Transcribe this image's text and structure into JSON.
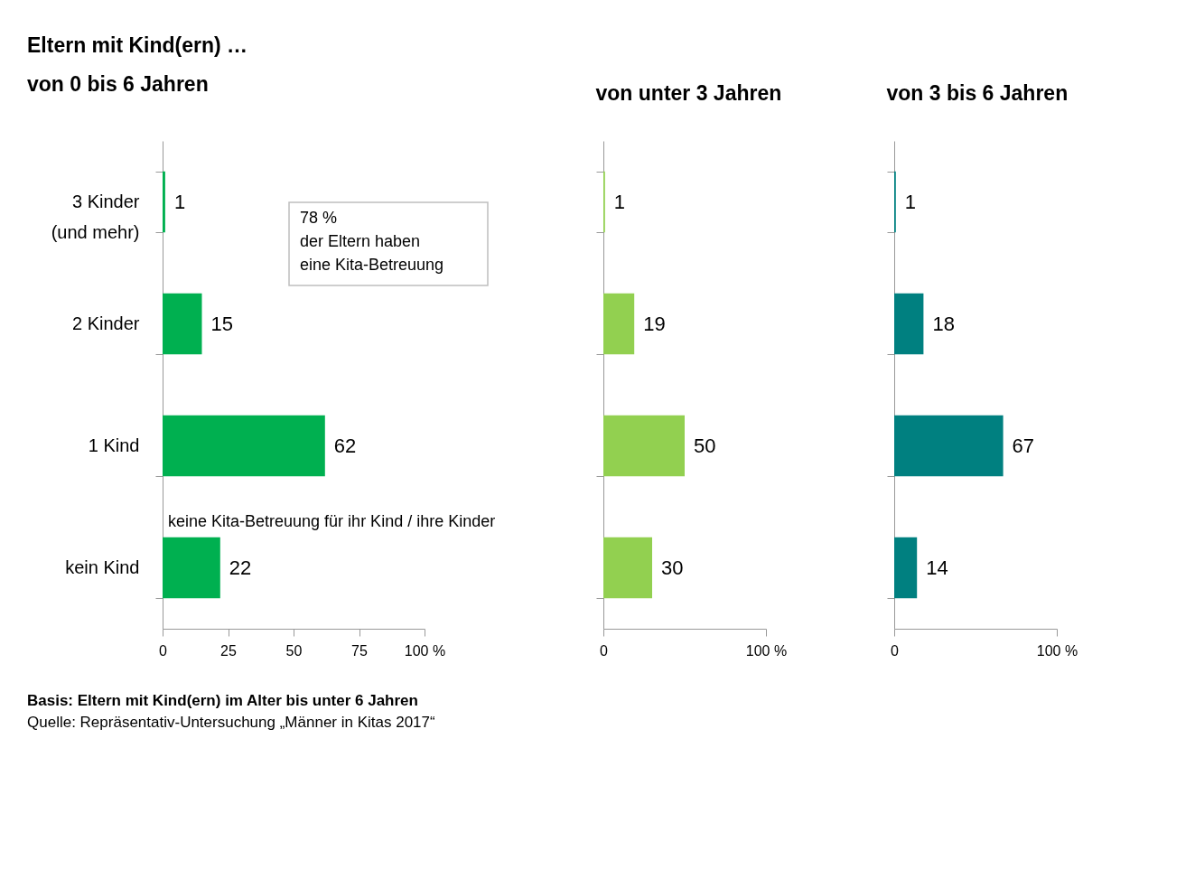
{
  "chart_data": [
    {
      "type": "bar",
      "orientation": "horizontal",
      "title": "von 0 bis 6 Jahren",
      "categories": [
        "3 Kinder\n(und mehr)",
        "2 Kinder",
        "1 Kind",
        "kein Kind"
      ],
      "values": [
        1,
        15,
        62,
        22
      ],
      "color": "#00b050",
      "xlim": [
        0,
        100
      ],
      "xticks": [
        0,
        25,
        50,
        75,
        {
          "value": 100,
          "label": "100 %"
        }
      ],
      "data_labels": true,
      "grid": false,
      "annotations": [
        "Eltern mit Kind(ern) …",
        "78 %\nder Eltern haben\neine Kita-Betreuung",
        "keine Kita-Betreuung für ihr Kind / ihre Kinder",
        "Basis: Eltern mit Kind(ern) im Alter bis unter 6 Jahren",
        "Quelle: Repräsentativ-Untersuchung „Männer in Kitas 2017“"
      ]
    },
    {
      "type": "bar",
      "orientation": "horizontal",
      "title": "von unter 3 Jahren",
      "categories": [
        null,
        null,
        null,
        null
      ],
      "values": [
        1,
        19,
        50,
        30
      ],
      "color": "#92d050",
      "xlim": [
        0,
        100
      ],
      "xticks": [
        0,
        {
          "value": 100,
          "label": "100 %"
        }
      ],
      "data_labels": true,
      "grid": false,
      "tick_labels": "x"
    },
    {
      "type": "bar",
      "orientation": "horizontal",
      "title": "von 3 bis 6 Jahren",
      "categories": [
        null,
        null,
        null,
        null
      ],
      "values": [
        1,
        18,
        67,
        14
      ],
      "color": "#008080",
      "xlim": [
        0,
        100
      ],
      "xticks": [
        0,
        {
          "value": 100,
          "label": "100 %"
        }
      ],
      "data_labels": true,
      "grid": false,
      "tick_labels": "x"
    }
  ]
}
